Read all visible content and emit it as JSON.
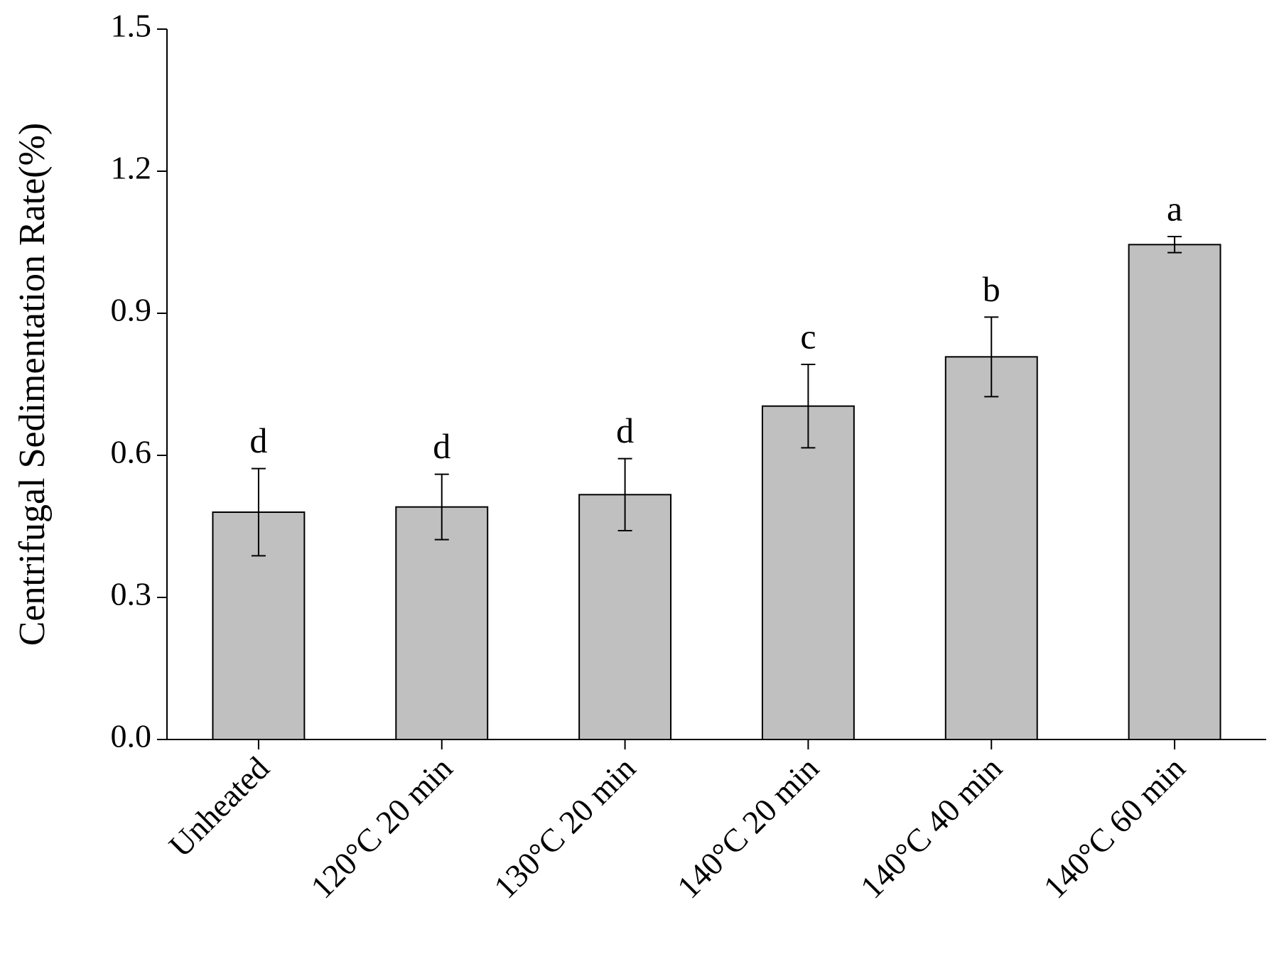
{
  "chart_data": {
    "type": "bar",
    "y_label": "Centrifugal Sedimentation Rate(%)",
    "categories": [
      "Unheated",
      "120°C 20 min",
      "130°C 20 min",
      "140°C 20 min",
      "140°C 40 min",
      "140°C 60 min"
    ],
    "values": [
      0.48,
      0.491,
      0.517,
      0.704,
      0.808,
      1.045
    ],
    "errors": [
      0.092,
      0.069,
      0.076,
      0.088,
      0.084,
      0.017
    ],
    "letters": [
      "d",
      "d",
      "d",
      "c",
      "b",
      "a"
    ],
    "color": "#c0c0c0",
    "ylim": [
      0,
      1.5
    ],
    "yticks": [
      {
        "value": 0,
        "label": "0.0"
      },
      0.3,
      0.6,
      0.9,
      1.2,
      1.5
    ]
  }
}
